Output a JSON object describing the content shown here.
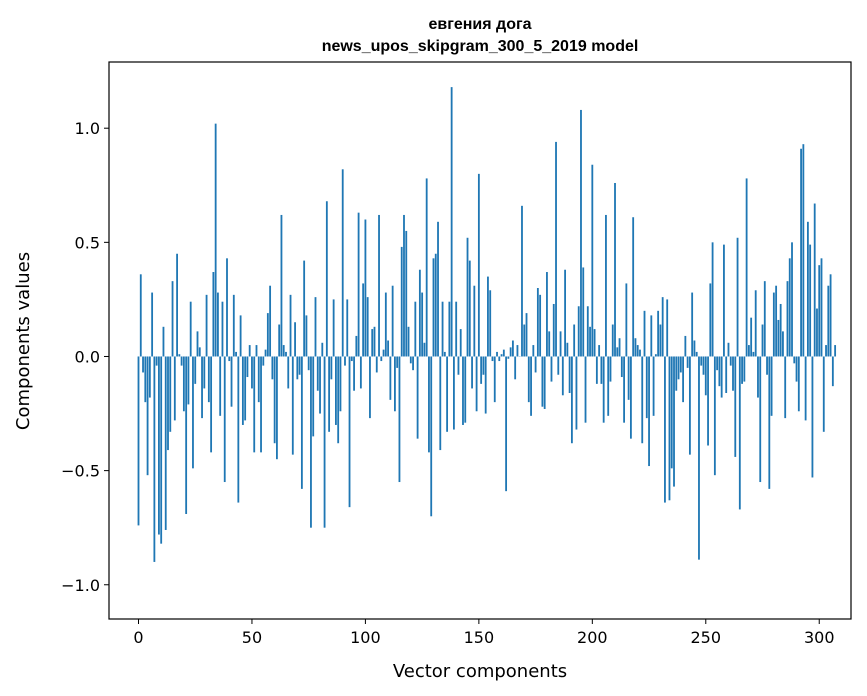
{
  "chart_data": {
    "type": "bar",
    "title_lines": [
      "евгения дога",
      "news_upos_skipgram_300_5_2019 model"
    ],
    "xlabel": "Vector components",
    "ylabel": "Components values",
    "xlim": [
      -13,
      314
    ],
    "ylim": [
      -1.15,
      1.29
    ],
    "xticks": [
      0,
      50,
      100,
      150,
      200,
      250,
      300
    ],
    "xtick_labels": [
      "0",
      "50",
      "100",
      "150",
      "200",
      "250",
      "300"
    ],
    "yticks": [
      -1.0,
      -0.5,
      0.0,
      0.5,
      1.0
    ],
    "ytick_labels": [
      "−1.0",
      "−0.5",
      "0.0",
      "0.5",
      "1.0"
    ],
    "grid": false,
    "bar_color": "#1f77b4",
    "values": [
      -0.74,
      0.36,
      -0.07,
      -0.2,
      -0.52,
      -0.18,
      0.28,
      -0.9,
      -0.04,
      -0.78,
      -0.82,
      0.13,
      -0.76,
      -0.41,
      -0.33,
      0.33,
      -0.28,
      0.45,
      0.01,
      -0.04,
      -0.24,
      -0.69,
      -0.21,
      0.24,
      -0.49,
      -0.12,
      0.11,
      0.04,
      -0.27,
      -0.14,
      0.27,
      -0.2,
      -0.42,
      0.37,
      1.02,
      0.28,
      -0.26,
      0.24,
      -0.55,
      0.43,
      -0.02,
      -0.22,
      0.27,
      0.02,
      -0.64,
      0.18,
      -0.3,
      -0.28,
      -0.09,
      0.05,
      -0.14,
      -0.42,
      0.05,
      -0.2,
      -0.42,
      -0.04,
      0.03,
      0.19,
      0.31,
      -0.1,
      -0.38,
      -0.45,
      0.14,
      0.62,
      0.05,
      0.02,
      -0.14,
      0.27,
      -0.43,
      0.15,
      -0.1,
      -0.08,
      -0.58,
      0.42,
      0.18,
      -0.06,
      -0.75,
      -0.35,
      0.26,
      -0.15,
      -0.25,
      0.06,
      -0.75,
      0.68,
      -0.33,
      -0.1,
      0.25,
      -0.3,
      -0.38,
      -0.24,
      0.82,
      -0.04,
      0.25,
      -0.66,
      -0.02,
      -0.15,
      0.09,
      0.63,
      -0.14,
      0.32,
      0.6,
      0.26,
      -0.27,
      0.12,
      0.13,
      -0.07,
      0.62,
      -0.02,
      0.03,
      0.28,
      0.07,
      -0.19,
      0.31,
      -0.24,
      -0.05,
      -0.55,
      0.48,
      0.62,
      0.55,
      0.13,
      -0.03,
      -0.06,
      0.24,
      -0.36,
      0.38,
      0.28,
      0.06,
      0.78,
      -0.42,
      -0.7,
      0.43,
      0.45,
      0.59,
      -0.41,
      0.24,
      0.02,
      -0.33,
      0.24,
      1.18,
      -0.32,
      0.24,
      -0.08,
      0.12,
      -0.3,
      -0.29,
      0.52,
      0.42,
      -0.14,
      0.31,
      -0.24,
      0.8,
      -0.12,
      -0.08,
      -0.25,
      0.35,
      0.29,
      -0.02,
      -0.2,
      0.02,
      -0.02,
      0.01,
      0.03,
      -0.59,
      -0.01,
      0.04,
      0.07,
      -0.1,
      0.05,
      0.0,
      0.66,
      0.14,
      0.19,
      -0.2,
      -0.26,
      0.05,
      -0.07,
      0.3,
      0.27,
      -0.22,
      -0.23,
      0.37,
      0.11,
      -0.11,
      0.23,
      0.94,
      -0.08,
      0.11,
      -0.17,
      0.38,
      0.06,
      -0.16,
      -0.38,
      0.14,
      -0.32,
      0.22,
      1.08,
      0.39,
      -0.29,
      0.22,
      0.13,
      0.84,
      0.12,
      -0.12,
      0.05,
      -0.12,
      -0.29,
      0.62,
      -0.26,
      -0.11,
      0.14,
      0.76,
      0.04,
      0.08,
      -0.09,
      -0.29,
      0.32,
      -0.19,
      -0.36,
      0.61,
      0.08,
      0.05,
      0.03,
      -0.38,
      0.2,
      -0.27,
      -0.48,
      0.18,
      -0.26,
      0.01,
      0.2,
      0.14,
      0.26,
      -0.64,
      0.25,
      -0.63,
      -0.49,
      -0.57,
      -0.15,
      -0.1,
      -0.07,
      -0.2,
      0.09,
      -0.05,
      -0.43,
      0.28,
      0.07,
      0.02,
      -0.89,
      -0.04,
      -0.08,
      -0.17,
      -0.39,
      0.32,
      0.5,
      -0.52,
      -0.06,
      -0.13,
      -0.18,
      0.49,
      -0.16,
      0.06,
      -0.04,
      -0.15,
      -0.44,
      0.52,
      -0.67,
      -0.12,
      -0.11,
      0.78,
      0.05,
      0.17,
      0.02,
      0.29,
      -0.18,
      -0.55,
      0.14,
      0.33,
      -0.08,
      -0.58,
      -0.26,
      0.28,
      0.31,
      0.16,
      0.23,
      0.11,
      -0.27,
      0.33,
      0.43,
      0.5,
      -0.03,
      -0.11,
      -0.24,
      0.91,
      0.93,
      -0.28,
      0.59,
      0.49,
      -0.53,
      0.67,
      0.21,
      0.4,
      0.43,
      -0.33,
      0.05,
      0.31,
      0.36,
      -0.13,
      0.05
    ]
  }
}
